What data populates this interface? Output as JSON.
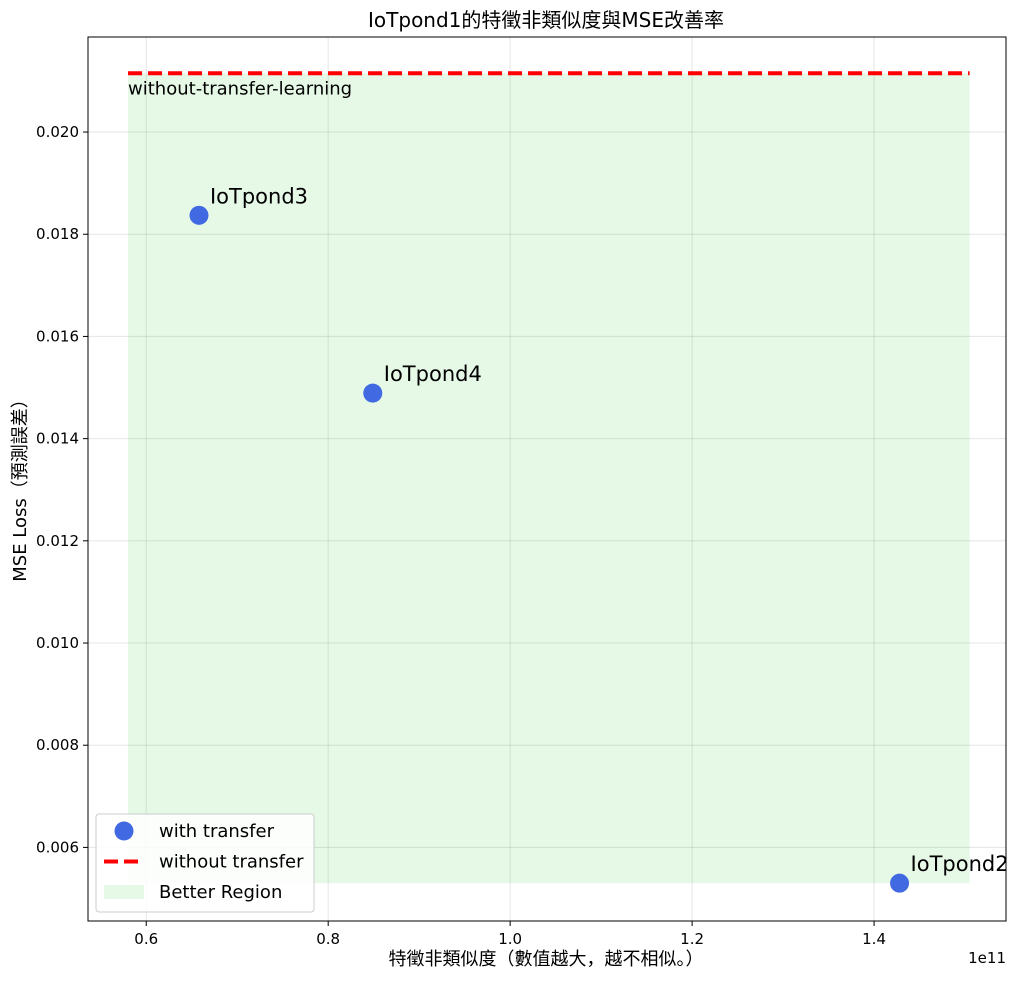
{
  "chart_data": {
    "type": "scatter",
    "title": "IoTpond1的特徵非類似度與MSE改善率",
    "xlabel": "特徵非類似度（數值越大，越不相似。）",
    "ylabel": "MSE Loss（預測誤差）",
    "x_offset_label": "1e11",
    "xlim": [
      0.536,
      1.545
    ],
    "ylim": [
      0.00456,
      0.02186
    ],
    "x_ticks": [
      0.6,
      0.8,
      1.0,
      1.2,
      1.4
    ],
    "x_tick_labels": [
      "0.6",
      "0.8",
      "1.0",
      "1.2",
      "1.4"
    ],
    "y_ticks": [
      0.006,
      0.008,
      0.01,
      0.012,
      0.014,
      0.016,
      0.018,
      0.02
    ],
    "y_tick_labels": [
      "0.006",
      "0.008",
      "0.010",
      "0.012",
      "0.014",
      "0.016",
      "0.018",
      "0.020"
    ],
    "grid": true,
    "legend_position": "lower-left",
    "series": [
      {
        "name": "with transfer",
        "color": "#4169e1",
        "points": [
          {
            "label": "IoTpond3",
            "x": 0.658,
            "y": 0.01837
          },
          {
            "label": "IoTpond4",
            "x": 0.849,
            "y": 0.01489
          },
          {
            "label": "IoTpond2",
            "x": 1.428,
            "y": 0.0053
          }
        ]
      }
    ],
    "baseline": {
      "name": "without transfer",
      "value": 0.02115,
      "x_range": [
        0.58,
        1.505
      ],
      "color": "#ff0000",
      "annotation": "without-transfer-learning"
    },
    "region": {
      "name": "Better Region",
      "x_range": [
        0.58,
        1.505
      ],
      "y_range": [
        0.0053,
        0.02115
      ],
      "color": "#e6f9e6"
    }
  }
}
